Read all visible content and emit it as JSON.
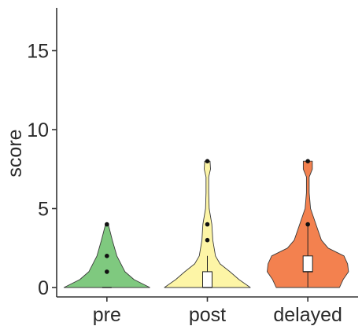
{
  "chart_data": {
    "type": "violin",
    "title": "",
    "xlabel": "",
    "ylabel": "score",
    "ylim": [
      0,
      17.5
    ],
    "yticks": [
      0,
      5,
      10,
      15
    ],
    "ytick_labels": [
      "0",
      "5",
      "10",
      "15"
    ],
    "grid": false,
    "legend": "none",
    "categories": [
      "pre",
      "post",
      "delayed"
    ],
    "groups": [
      {
        "name": "pre",
        "color": "#7fc97f",
        "density_profile": [
          [
            0,
            0.95
          ],
          [
            0.5,
            0.6
          ],
          [
            1,
            0.4
          ],
          [
            2,
            0.22
          ],
          [
            3,
            0.12
          ],
          [
            4,
            0.03
          ]
        ],
        "box": {
          "min": 0,
          "q1": 0,
          "median": 0,
          "q3": 0,
          "max": 0
        },
        "points": [
          4,
          2,
          1
        ]
      },
      {
        "name": "post",
        "color": "#fdf5a6",
        "density_profile": [
          [
            0,
            0.95
          ],
          [
            0.5,
            0.7
          ],
          [
            1,
            0.5
          ],
          [
            1.5,
            0.28
          ],
          [
            2,
            0.18
          ],
          [
            3,
            0.12
          ],
          [
            4,
            0.1
          ],
          [
            5,
            0.04
          ],
          [
            6,
            0.03
          ],
          [
            7,
            0.03
          ],
          [
            7.5,
            0.07
          ],
          [
            8,
            0.06
          ]
        ],
        "box": {
          "min": 0,
          "q1": 0,
          "median": 0,
          "q3": 1,
          "max": 2
        },
        "points": [
          8,
          4,
          3
        ]
      },
      {
        "name": "delayed",
        "color": "#f3814f",
        "density_profile": [
          [
            0,
            0.7
          ],
          [
            0.5,
            0.78
          ],
          [
            1,
            0.9
          ],
          [
            1.5,
            0.88
          ],
          [
            2,
            0.8
          ],
          [
            2.5,
            0.45
          ],
          [
            3,
            0.3
          ],
          [
            4,
            0.18
          ],
          [
            5,
            0.06
          ],
          [
            6,
            0.03
          ],
          [
            7,
            0.03
          ],
          [
            7.5,
            0.1
          ],
          [
            8,
            0.1
          ]
        ],
        "box": {
          "min": 0,
          "q1": 1,
          "median": 1,
          "q3": 2,
          "max": 4
        },
        "points": [
          8,
          4
        ]
      }
    ]
  }
}
